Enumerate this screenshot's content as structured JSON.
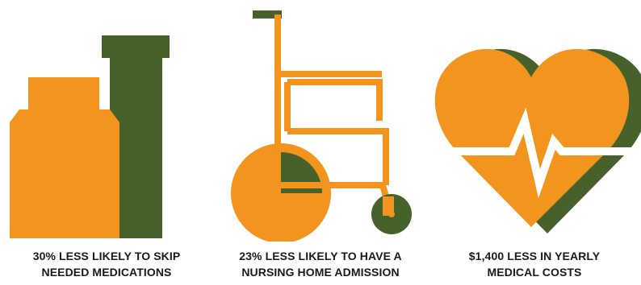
{
  "colors": {
    "orange": "#F3941E",
    "green": "#46612A",
    "text": "#1a1a1a",
    "background": "#ffffff"
  },
  "stats": [
    {
      "icon": "medicine-bottles-icon",
      "line1": "30% LESS LIKELY TO SKIP",
      "line2": "NEEDED MEDICATIONS"
    },
    {
      "icon": "wheelchair-icon",
      "line1": "23% LESS LIKELY TO HAVE A",
      "line2": "NURSING HOME ADMISSION"
    },
    {
      "icon": "heart-heartbeat-icon",
      "line1": "$1,400 LESS IN YEARLY",
      "line2": "MEDICAL COSTS"
    }
  ]
}
